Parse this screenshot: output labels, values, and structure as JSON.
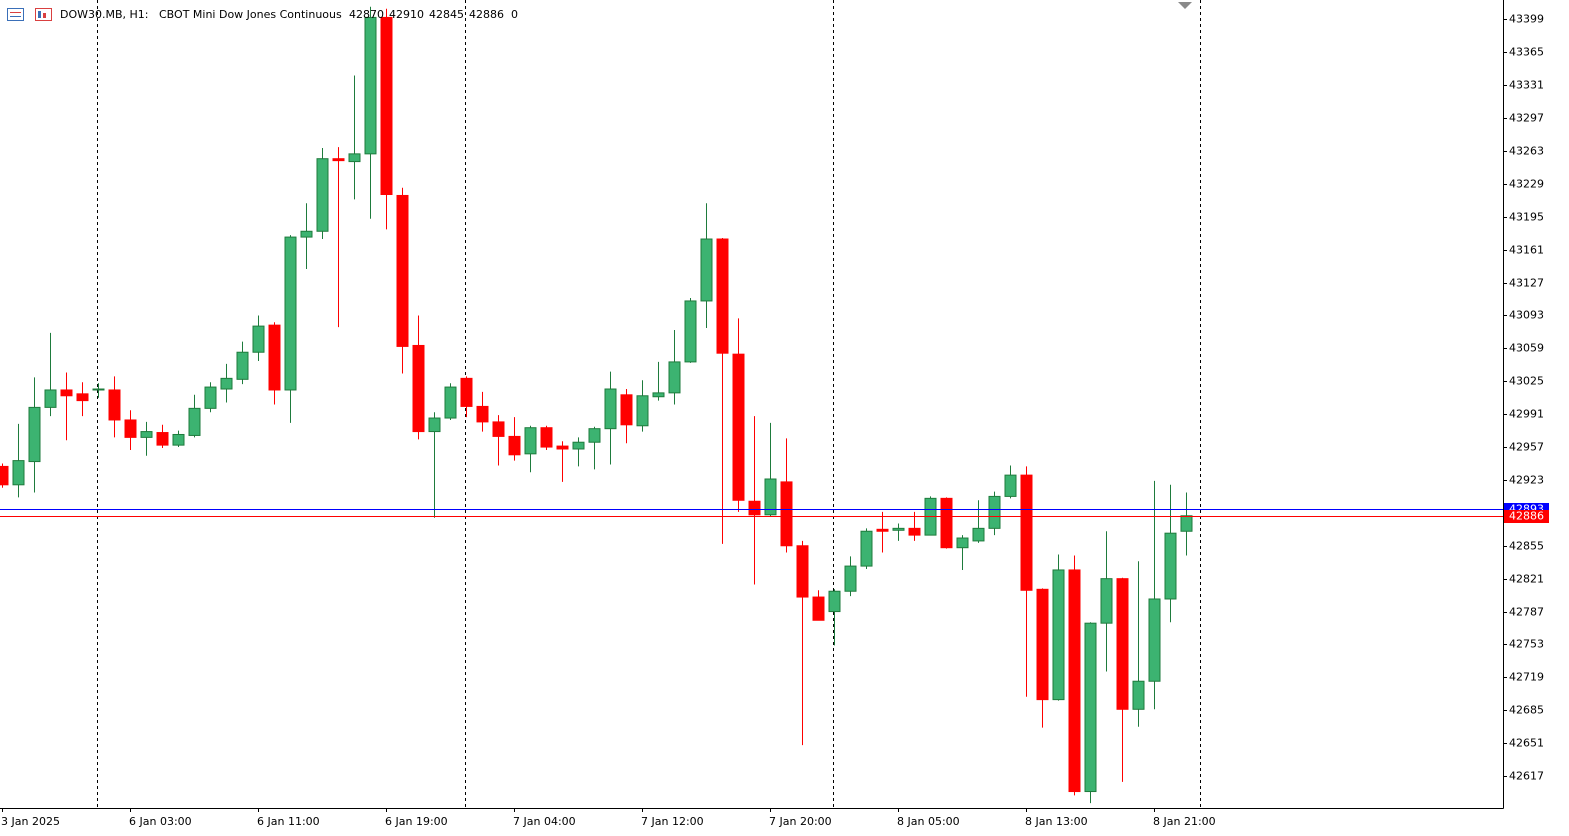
{
  "chart_data": {
    "type": "candlestick",
    "title": "DOW30.MB, H1:",
    "subtitle": "CBOT Mini Dow Jones Continuous",
    "header_ohlc": [
      42870,
      42910,
      42845,
      42886
    ],
    "header_volume": 0,
    "categories": [
      "3 Jan 2025",
      null,
      null,
      null,
      null,
      null,
      null,
      null,
      "6 Jan 03:00",
      null,
      null,
      null,
      null,
      null,
      null,
      null,
      "6 Jan 11:00",
      null,
      null,
      null,
      null,
      null,
      null,
      null,
      "6 Jan 19:00",
      null,
      null,
      null,
      null,
      null,
      null,
      null,
      "7 Jan 04:00",
      null,
      null,
      null,
      null,
      null,
      null,
      null,
      "7 Jan 12:00",
      null,
      null,
      null,
      null,
      null,
      null,
      null,
      "7 Jan 20:00",
      null,
      null,
      null,
      null,
      null,
      null,
      null,
      "8 Jan 05:00",
      null,
      null,
      null,
      null,
      null,
      null,
      null,
      "8 Jan 13:00",
      null,
      null,
      null,
      null,
      null,
      null,
      null,
      "8 Jan 21:00",
      null,
      null
    ],
    "open": [
      42937,
      42918,
      42942,
      42998,
      43016,
      43012,
      43016,
      43016,
      42985,
      42967,
      42972,
      42959,
      42969,
      42997,
      43017,
      43027,
      43055,
      43083,
      43016,
      43174,
      43180,
      43255,
      43252,
      43260,
      43401,
      43217,
      43062,
      42973,
      42987,
      43028,
      42999,
      42983,
      42968,
      42950,
      42977,
      42958,
      42955,
      42962,
      42976,
      43011,
      42979,
      43009,
      43013,
      43045,
      43108,
      43172,
      43053,
      42901,
      42887,
      42921,
      42855,
      42802,
      42787,
      42808,
      42834,
      42872,
      42871,
      42873,
      42866,
      42904,
      42853,
      42860,
      42873,
      42906,
      42928,
      42810,
      42696,
      42830,
      42601,
      42775,
      42821,
      42686,
      42715,
      42800,
      42870
    ],
    "high": [
      42940,
      42981,
      43029,
      43075,
      43034,
      43024,
      43023,
      43030,
      42995,
      42983,
      42980,
      42974,
      43011,
      43024,
      43043,
      43066,
      43093,
      43086,
      43176,
      43209,
      43266,
      43267,
      43341,
      43412,
      43410,
      43225,
      43093,
      42993,
      43023,
      43030,
      43014,
      42990,
      42988,
      42979,
      42979,
      42963,
      42967,
      42978,
      43035,
      43017,
      43026,
      43045,
      43078,
      43111,
      43209,
      43173,
      43090,
      42989,
      42982,
      42966,
      42860,
      42809,
      42810,
      42844,
      42873,
      42890,
      42878,
      42890,
      42906,
      42905,
      42866,
      42902,
      42911,
      42938,
      42937,
      42811,
      42846,
      42845,
      42776,
      42870,
      42822,
      42839,
      42922,
      42918,
      42910
    ],
    "low": [
      42915,
      42905,
      42910,
      42989,
      42964,
      42989,
      43008,
      42967,
      42954,
      42948,
      42956,
      42957,
      42967,
      42993,
      43003,
      43022,
      43046,
      43001,
      42982,
      43141,
      43172,
      43081,
      43213,
      43193,
      43182,
      43033,
      42965,
      42884,
      42985,
      42988,
      42973,
      42938,
      42943,
      42931,
      42954,
      42921,
      42937,
      42934,
      42939,
      42961,
      42973,
      43005,
      43001,
      43044,
      43080,
      42857,
      42890,
      42815,
      42885,
      42848,
      42649,
      42778,
      42752,
      42803,
      42831,
      42848,
      42860,
      42860,
      42866,
      42852,
      42830,
      42858,
      42866,
      42904,
      42699,
      42667,
      42695,
      42597,
      42589,
      42725,
      42611,
      42668,
      42686,
      42776,
      42845
    ],
    "close": [
      42918,
      42943,
      42998,
      43016,
      43010,
      43005,
      43017,
      42985,
      42967,
      42973,
      42959,
      42970,
      42997,
      43019,
      43028,
      43055,
      43082,
      43016,
      43174,
      43180,
      43255,
      43253,
      43260,
      43401,
      43218,
      43061,
      42973,
      42987,
      43019,
      42999,
      42983,
      42968,
      42949,
      42977,
      42957,
      42955,
      42962,
      42976,
      43017,
      42980,
      43010,
      43013,
      43045,
      43108,
      43172,
      43054,
      42902,
      42887,
      42924,
      42855,
      42802,
      42778,
      42808,
      42834,
      42870,
      42870,
      42873,
      42866,
      42904,
      42853,
      42863,
      42873,
      42906,
      42928,
      42809,
      42696,
      42830,
      42601,
      42775,
      42821,
      42686,
      42715,
      42800,
      42868,
      42886
    ],
    "up_color": "#3cb371",
    "up_line_color": "#1e7b3c",
    "down_color": "#ff0000",
    "price_lines": [
      {
        "value": 42893,
        "color": "#0000ff"
      },
      {
        "value": 42886,
        "color": "#ff0000"
      }
    ],
    "ylim": [
      42584,
      43419
    ],
    "yticks": [
      43399,
      43365,
      43331,
      43297,
      43263,
      43229,
      43195,
      43161,
      43127,
      43093,
      43059,
      43025,
      42991,
      42957,
      42923,
      42855,
      42821,
      42787,
      42753,
      42719,
      42685,
      42651,
      42617
    ],
    "grid": false
  }
}
